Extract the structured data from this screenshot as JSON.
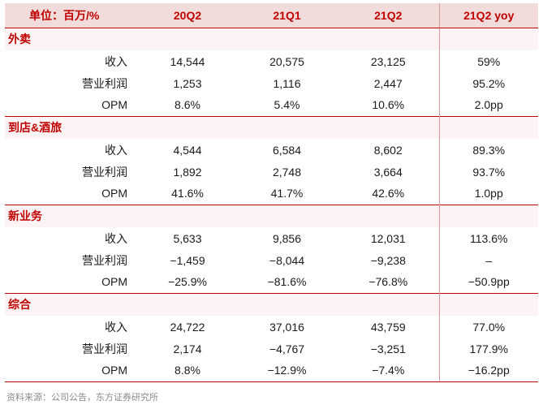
{
  "chart_data": {
    "type": "table",
    "unit_label": "单位：百万/%",
    "columns": [
      "20Q2",
      "21Q1",
      "21Q2",
      "21Q2 yoy"
    ],
    "sections": [
      {
        "name": "外卖",
        "rows": [
          {
            "label": "收入",
            "values": [
              "14,544",
              "20,575",
              "23,125",
              "59%"
            ]
          },
          {
            "label": "营业利润",
            "values": [
              "1,253",
              "1,116",
              "2,447",
              "95.2%"
            ]
          },
          {
            "label": "OPM",
            "values": [
              "8.6%",
              "5.4%",
              "10.6%",
              "2.0pp"
            ]
          }
        ]
      },
      {
        "name": "到店&酒旅",
        "rows": [
          {
            "label": "收入",
            "values": [
              "4,544",
              "6,584",
              "8,602",
              "89.3%"
            ]
          },
          {
            "label": "营业利润",
            "values": [
              "1,892",
              "2,748",
              "3,664",
              "93.7%"
            ]
          },
          {
            "label": "OPM",
            "values": [
              "41.6%",
              "41.7%",
              "42.6%",
              "1.0pp"
            ]
          }
        ]
      },
      {
        "name": "新业务",
        "rows": [
          {
            "label": "收入",
            "values": [
              "5,633",
              "9,856",
              "12,031",
              "113.6%"
            ]
          },
          {
            "label": "营业利润",
            "values": [
              "−1,459",
              "−8,044",
              "−9,238",
              "–"
            ]
          },
          {
            "label": "OPM",
            "values": [
              "−25.9%",
              "−81.6%",
              "−76.8%",
              "−50.9pp"
            ]
          }
        ]
      },
      {
        "name": "综合",
        "rows": [
          {
            "label": "收入",
            "values": [
              "24,722",
              "37,016",
              "43,759",
              "77.0%"
            ]
          },
          {
            "label": "营业利润",
            "values": [
              "2,174",
              "−4,767",
              "−3,251",
              "177.9%"
            ]
          },
          {
            "label": "OPM",
            "values": [
              "8.8%",
              "−12.9%",
              "−7.4%",
              "−16.2pp"
            ]
          }
        ]
      }
    ]
  },
  "footer": {
    "source": "资料来源：公司公告，东方证券研究所"
  },
  "colors": {
    "accent_red": "#c00000",
    "header_bg": "#f2dbdb",
    "section_bg": "#fcf4f4",
    "column_divider": "#d49a98",
    "source_text": "#8a8a8a"
  }
}
